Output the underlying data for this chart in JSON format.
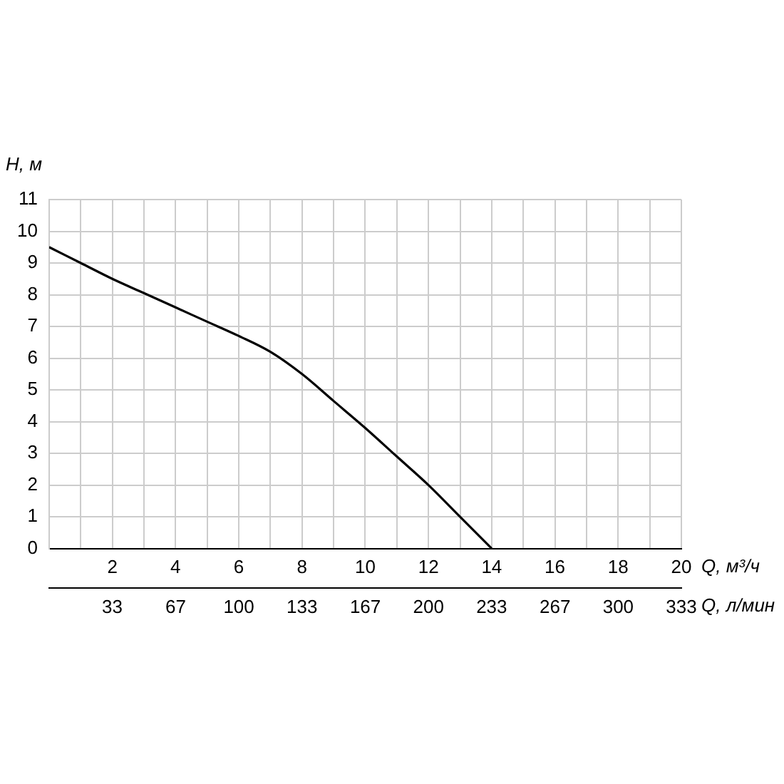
{
  "chart_data": {
    "type": "line",
    "xlabel": "Q, м³/ч",
    "ylabel": "H, м",
    "x2label": "Q, л/мин",
    "series": [
      {
        "color": "#000000",
        "x": [
          0,
          1,
          2,
          3,
          4,
          5,
          6,
          7,
          8,
          9,
          10,
          11,
          12,
          13,
          14
        ],
        "values": [
          9.5,
          9,
          8.5,
          8.05,
          7.6,
          7.15,
          6.7,
          6.2,
          5.5,
          4.65,
          3.8,
          2.9,
          2.0,
          1.0,
          0
        ]
      }
    ],
    "xlim": [
      0,
      20
    ],
    "xticks": [
      {
        "value": 1,
        "label": null
      },
      2,
      {
        "value": 3,
        "label": null
      },
      4,
      {
        "value": 5,
        "label": null
      },
      6,
      {
        "value": 7,
        "label": null
      },
      8,
      {
        "value": 9,
        "label": null
      },
      10,
      {
        "value": 11,
        "label": null
      },
      12,
      {
        "value": 13,
        "label": null
      },
      14,
      {
        "value": 15,
        "label": null
      },
      16,
      {
        "value": 17,
        "label": null
      },
      18,
      {
        "value": 19,
        "label": null
      },
      20
    ],
    "x2lim": [
      0,
      333.3
    ],
    "x2ticks": [
      {
        "value": 33.3,
        "label": "33"
      },
      {
        "value": 66.7,
        "label": "67"
      },
      100,
      {
        "value": 133.3,
        "label": "133"
      },
      {
        "value": 166.7,
        "label": "167"
      },
      200,
      {
        "value": 233.3,
        "label": "233"
      },
      {
        "value": 266.7,
        "label": "267"
      },
      300,
      {
        "value": 333.3,
        "label": "333"
      }
    ],
    "ylim": [
      0,
      11
    ],
    "yticks": [
      0,
      1,
      2,
      3,
      4,
      5,
      6,
      7,
      8,
      9,
      10,
      11
    ],
    "grid": true,
    "legend": false,
    "marker": "none",
    "line_style": "solid"
  }
}
